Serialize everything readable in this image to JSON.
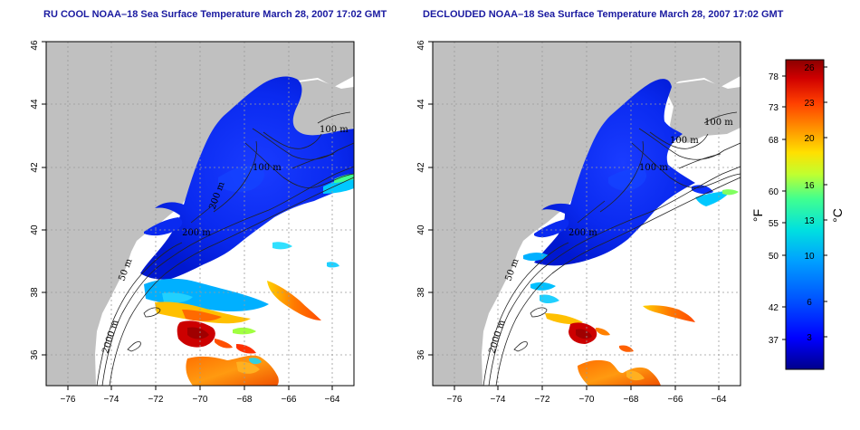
{
  "maps": [
    {
      "title": "RU COOL NOAA–18 Sea Surface Temperature March 28, 2007 17:02 GMT",
      "variant": "raw"
    },
    {
      "title": "DECLOUDED NOAA–18 Sea Surface Temperature March 28, 2007 17:02 GMT",
      "variant": "declouded"
    }
  ],
  "axes": {
    "lon_ticks": [
      "−76",
      "−74",
      "−72",
      "−70",
      "−68",
      "−66",
      "−64"
    ],
    "lat_ticks": [
      "36",
      "38",
      "40",
      "42",
      "44",
      "46"
    ],
    "lon_range": [
      -77,
      -63
    ],
    "lat_range": [
      35,
      46
    ]
  },
  "contour_labels_left": [
    "100 m",
    "2000 m",
    "50 m",
    "200 m",
    "100 m",
    "200 m"
  ],
  "contour_labels_right": [
    "100 m",
    "2000 m",
    "50 m",
    "200 m",
    "100 m",
    "100 m"
  ],
  "colorbar": {
    "fahrenheit_ticks": [
      "78",
      "73",
      "68",
      "60",
      "55",
      "50",
      "42",
      "37"
    ],
    "celsius_ticks": [
      "26",
      "23",
      "20",
      "16",
      "13",
      "10",
      "6",
      "3"
    ],
    "fahrenheit_label": "°F",
    "celsius_label": "°C",
    "range_c": [
      0,
      27
    ],
    "colors": [
      "#00008b",
      "#0000ff",
      "#0050ff",
      "#00a0ff",
      "#00e0e0",
      "#40ff90",
      "#c0ff30",
      "#ffe000",
      "#ff9000",
      "#ff4000",
      "#d00000",
      "#8b0000"
    ]
  },
  "colors": {
    "land": "#c0c0c0",
    "grid": "#9a9a9a"
  }
}
